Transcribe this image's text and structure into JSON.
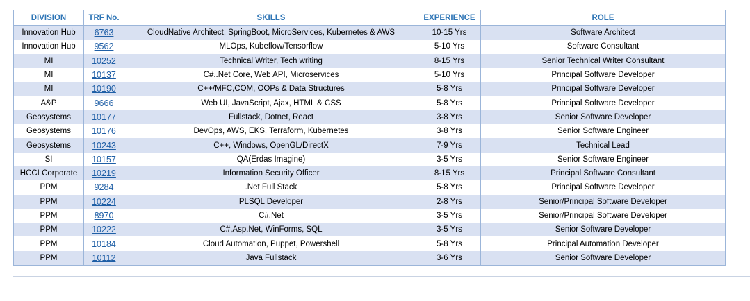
{
  "table": {
    "headers": {
      "division": "DIVISION",
      "trf": "TRF No.",
      "skills": "SKILLS",
      "experience": "EXPERIENCE",
      "role": "ROLE"
    },
    "rows": [
      {
        "division": "Innovation Hub",
        "trf": "6763",
        "skills": "CloudNative Architect, SpringBoot, MicroServices, Kubernetes & AWS",
        "experience": "10-15 Yrs",
        "role": "Software Architect"
      },
      {
        "division": "Innovation Hub",
        "trf": "9562",
        "skills": "MLOps, Kubeflow/Tensorflow",
        "experience": "5-10 Yrs",
        "role": "Software Consultant"
      },
      {
        "division": "MI",
        "trf": "10252",
        "skills": "Technical Writer, Tech writing",
        "experience": "8-15 Yrs",
        "role": "Senior Technical Writer Consultant"
      },
      {
        "division": "MI",
        "trf": "10137",
        "skills": "C#..Net Core, Web API, Microservices",
        "experience": "5-10 Yrs",
        "role": "Principal Software Developer"
      },
      {
        "division": "MI",
        "trf": "10190",
        "skills": "C++/MFC,COM, OOPs & Data Structures",
        "experience": "5-8 Yrs",
        "role": "Principal Software Developer"
      },
      {
        "division": "A&P",
        "trf": "9666",
        "skills": "Web UI, JavaScript, Ajax, HTML & CSS",
        "experience": "5-8 Yrs",
        "role": "Principal Software Developer"
      },
      {
        "division": "Geosystems",
        "trf": "10177",
        "skills": "Fullstack, Dotnet, React",
        "experience": "3-8 Yrs",
        "role": "Senior Software Developer"
      },
      {
        "division": "Geosystems",
        "trf": "10176",
        "skills": "DevOps, AWS, EKS, Terraform, Kubernetes",
        "experience": "3-8 Yrs",
        "role": "Senior Software Engineer"
      },
      {
        "division": "Geosystems",
        "trf": "10243",
        "skills": "C++, Windows, OpenGL/DirectX",
        "experience": "7-9 Yrs",
        "role": "Technical Lead"
      },
      {
        "division": "SI",
        "trf": "10157",
        "skills": "QA(Erdas Imagine)",
        "experience": "3-5 Yrs",
        "role": "Senior Software Engineer"
      },
      {
        "division": "HCCI Corporate",
        "trf": "10219",
        "skills": "Information Security Officer",
        "experience": "8-15 Yrs",
        "role": "Principal Software Consultant"
      },
      {
        "division": "PPM",
        "trf": "9284",
        "skills": ".Net Full Stack",
        "experience": "5-8 Yrs",
        "role": "Principal Software Developer"
      },
      {
        "division": "PPM",
        "trf": "10224",
        "skills": "PLSQL Developer",
        "experience": "2-8 Yrs",
        "role": "Senior/Principal Software Developer"
      },
      {
        "division": "PPM",
        "trf": "8970",
        "skills": "C#.Net",
        "experience": "3-5 Yrs",
        "role": "Senior/Principal Software Developer"
      },
      {
        "division": "PPM",
        "trf": "10222",
        "skills": "C#,Asp.Net, WinForms, SQL",
        "experience": "3-5 Yrs",
        "role": "Senior Software Developer"
      },
      {
        "division": "PPM",
        "trf": "10184",
        "skills": "Cloud Automation, Puppet, Powershell",
        "experience": "5-8 Yrs",
        "role": "Principal Automation Developer"
      },
      {
        "division": "PPM",
        "trf": "10112",
        "skills": "Java Fullstack",
        "experience": "3-6 Yrs",
        "role": "Senior Software Developer"
      }
    ]
  },
  "colors": {
    "header_text": "#2e75b6",
    "band_fill": "#d9e1f2",
    "link": "#1f5fa6",
    "border": "#9bb5d9"
  }
}
